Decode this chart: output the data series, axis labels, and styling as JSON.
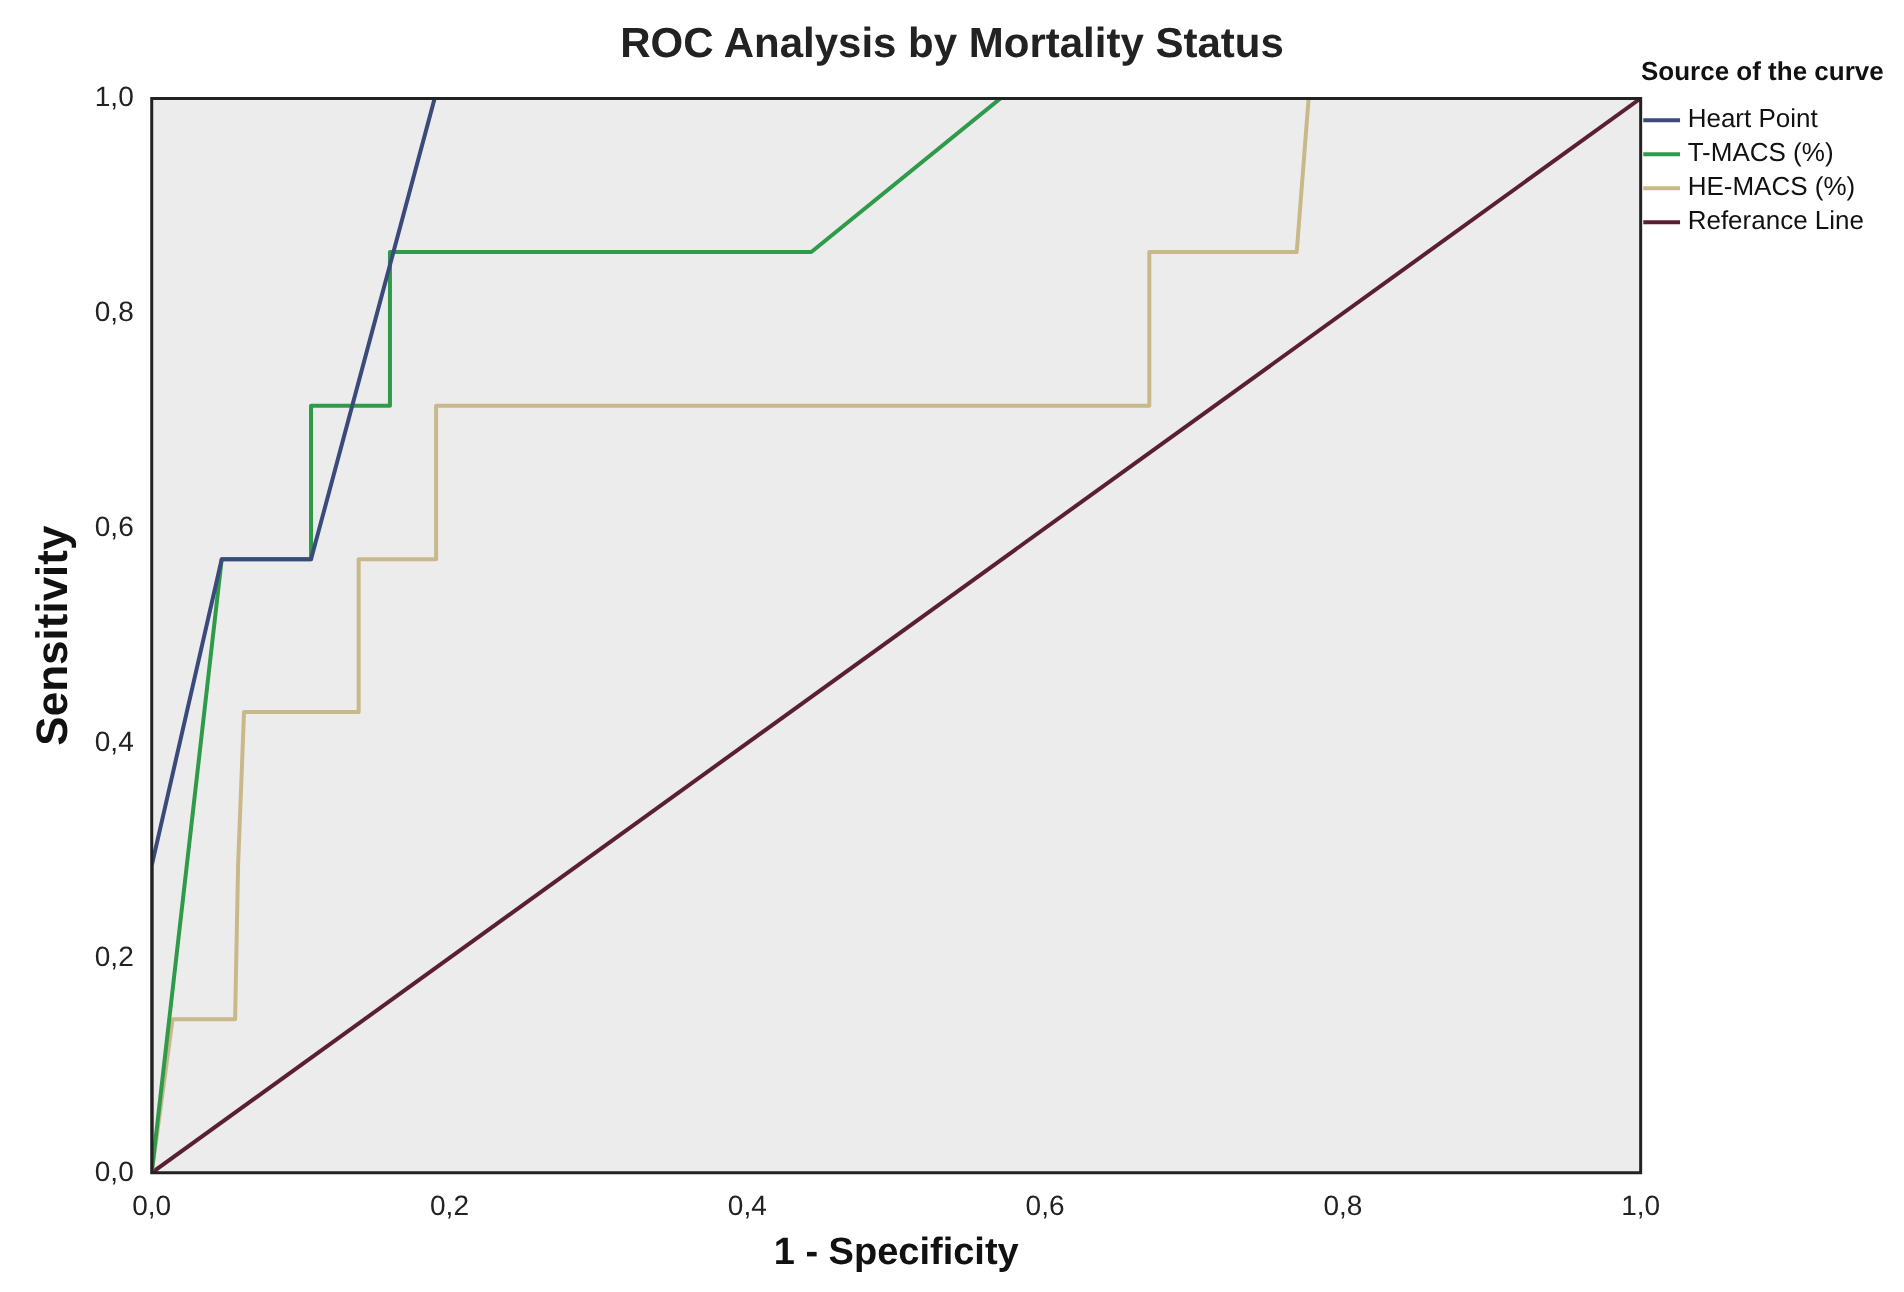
{
  "chart_data": {
    "type": "line",
    "title": "ROC Analysis by Mortality Status",
    "xlabel": "1 - Specificity",
    "ylabel": "Sensitivity",
    "legend_title": "Source of the curve",
    "legend": "right",
    "grid": false,
    "marker": "none",
    "line_style": "solid",
    "xlim": [
      0,
      1
    ],
    "ylim": [
      0,
      1
    ],
    "xticks": [
      {
        "value": 0,
        "label": "0,0"
      },
      {
        "value": 0.2,
        "label": "0,2"
      },
      {
        "value": 0.4,
        "label": "0,4"
      },
      {
        "value": 0.6,
        "label": "0,6"
      },
      {
        "value": 0.8,
        "label": "0,8"
      },
      {
        "value": 1,
        "label": "1,0"
      }
    ],
    "yticks": [
      {
        "value": 0,
        "label": "0,0"
      },
      {
        "value": 0.2,
        "label": "0,2"
      },
      {
        "value": 0.4,
        "label": "0,4"
      },
      {
        "value": 0.6,
        "label": "0,6"
      },
      {
        "value": 0.8,
        "label": "0,8"
      },
      {
        "value": 1,
        "label": "1,0"
      }
    ],
    "series": [
      {
        "name": "Heart Point",
        "color": "#3a4a7a",
        "x": [
          0,
          0,
          0.047,
          0.107,
          0.19
        ],
        "values": [
          0,
          0.286,
          0.571,
          0.571,
          1
        ]
      },
      {
        "name": "T-MACS (%)",
        "color": "#2e9a4a",
        "x": [
          0,
          0.047,
          0.107,
          0.107,
          0.16,
          0.16,
          0.443,
          0.57
        ],
        "values": [
          0,
          0.571,
          0.571,
          0.714,
          0.714,
          0.857,
          0.857,
          1
        ]
      },
      {
        "name": "HE-MACS (%)",
        "color": "#c8b88a",
        "x": [
          0,
          0.014,
          0.056,
          0.058,
          0.062,
          0.139,
          0.139,
          0.191,
          0.191,
          0.67,
          0.67,
          0.769,
          0.777
        ],
        "values": [
          0,
          0.143,
          0.143,
          0.286,
          0.429,
          0.429,
          0.571,
          0.571,
          0.714,
          0.714,
          0.857,
          0.857,
          1
        ]
      },
      {
        "name": "Referance Line",
        "color": "#5a1f35",
        "x": [
          0,
          1
        ],
        "values": [
          0,
          1
        ]
      }
    ]
  }
}
